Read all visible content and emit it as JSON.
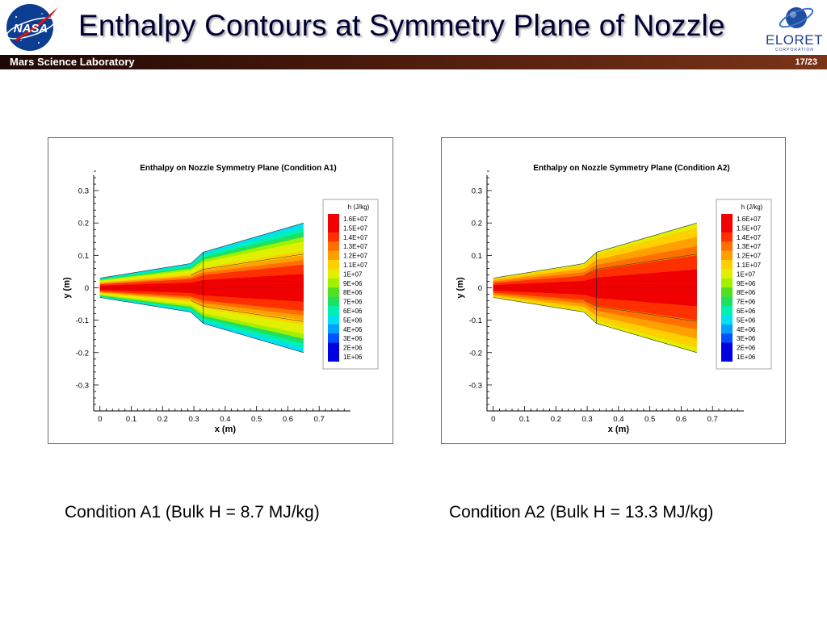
{
  "slide": {
    "title": "Enthalpy Contours at Symmetry Plane of Nozzle",
    "banner_left": "Mars Science Laboratory",
    "page_number": "17/23",
    "nasa_logo_text": "NASA",
    "eloret_logo_text": "ELORET",
    "eloret_logo_subtext": "CORPORATION"
  },
  "colors": {
    "banner": "#4a1a0c",
    "contour_scale": [
      "#0000e0",
      "#0050ff",
      "#00a0ff",
      "#00e0f0",
      "#00f0b0",
      "#20e060",
      "#50e020",
      "#a0f000",
      "#e0f000",
      "#ffd000",
      "#ffa000",
      "#ff7000",
      "#ff3000",
      "#f00000"
    ]
  },
  "chart_data": [
    {
      "type": "heatmap",
      "title": "Enthalpy on Nozzle Symmetry Plane (Condition A1)",
      "xlabel": "x (m)",
      "ylabel": "y (m)",
      "xlim": [
        -0.02,
        0.8
      ],
      "ylim": [
        -0.38,
        0.37
      ],
      "xticks": [
        "0",
        "0.1",
        "0.2",
        "0.3",
        "0.4",
        "0.5",
        "0.6",
        "0.7"
      ],
      "yticks": [
        "0.3",
        "0.2",
        "0.1",
        "0",
        "-0.1",
        "-0.2",
        "-0.3"
      ],
      "legend_title": "h (J/kg)",
      "legend_levels": [
        "1.6E+07",
        "1.5E+07",
        "1.4E+07",
        "1.3E+07",
        "1.2E+07",
        "1.1E+07",
        "1E+07",
        "9E+06",
        "8E+06",
        "7E+06",
        "6E+06",
        "5E+06",
        "4E+06",
        "3E+06",
        "2E+06",
        "1E+06"
      ],
      "legend_position": "right",
      "nozzle_contour": [
        [
          0,
          0.03
        ],
        [
          0.29,
          0.075
        ],
        [
          0.33,
          0.11
        ],
        [
          0.65,
          0.2
        ]
      ],
      "throat_x": 0.33,
      "centerline_h": "1.6E+07",
      "wall_h": "5E+06",
      "caption": "Condition A1 (Bulk H = 8.7 MJ/kg)"
    },
    {
      "type": "heatmap",
      "title": "Enthalpy on Nozzle Symmetry Plane (Condition A2)",
      "xlabel": "x (m)",
      "ylabel": "y (m)",
      "xlim": [
        -0.02,
        0.8
      ],
      "ylim": [
        -0.38,
        0.37
      ],
      "xticks": [
        "0",
        "0.1",
        "0.2",
        "0.3",
        "0.4",
        "0.5",
        "0.6",
        "0.7"
      ],
      "yticks": [
        "0.3",
        "0.2",
        "0.1",
        "0",
        "-0.1",
        "-0.2",
        "-0.3"
      ],
      "legend_title": "h (J/kg)",
      "legend_levels": [
        "1.6E+07",
        "1.5E+07",
        "1.4E+07",
        "1.3E+07",
        "1.2E+07",
        "1.1E+07",
        "1E+07",
        "9E+06",
        "8E+06",
        "7E+06",
        "6E+06",
        "5E+06",
        "4E+06",
        "3E+06",
        "2E+06",
        "1E+06"
      ],
      "legend_position": "right",
      "nozzle_contour": [
        [
          0,
          0.03
        ],
        [
          0.29,
          0.075
        ],
        [
          0.33,
          0.11
        ],
        [
          0.65,
          0.2
        ]
      ],
      "throat_x": 0.33,
      "centerline_h": "1.6E+07",
      "wall_h": "1E+07",
      "caption": "Condition A2 (Bulk H = 13.3 MJ/kg)"
    }
  ]
}
